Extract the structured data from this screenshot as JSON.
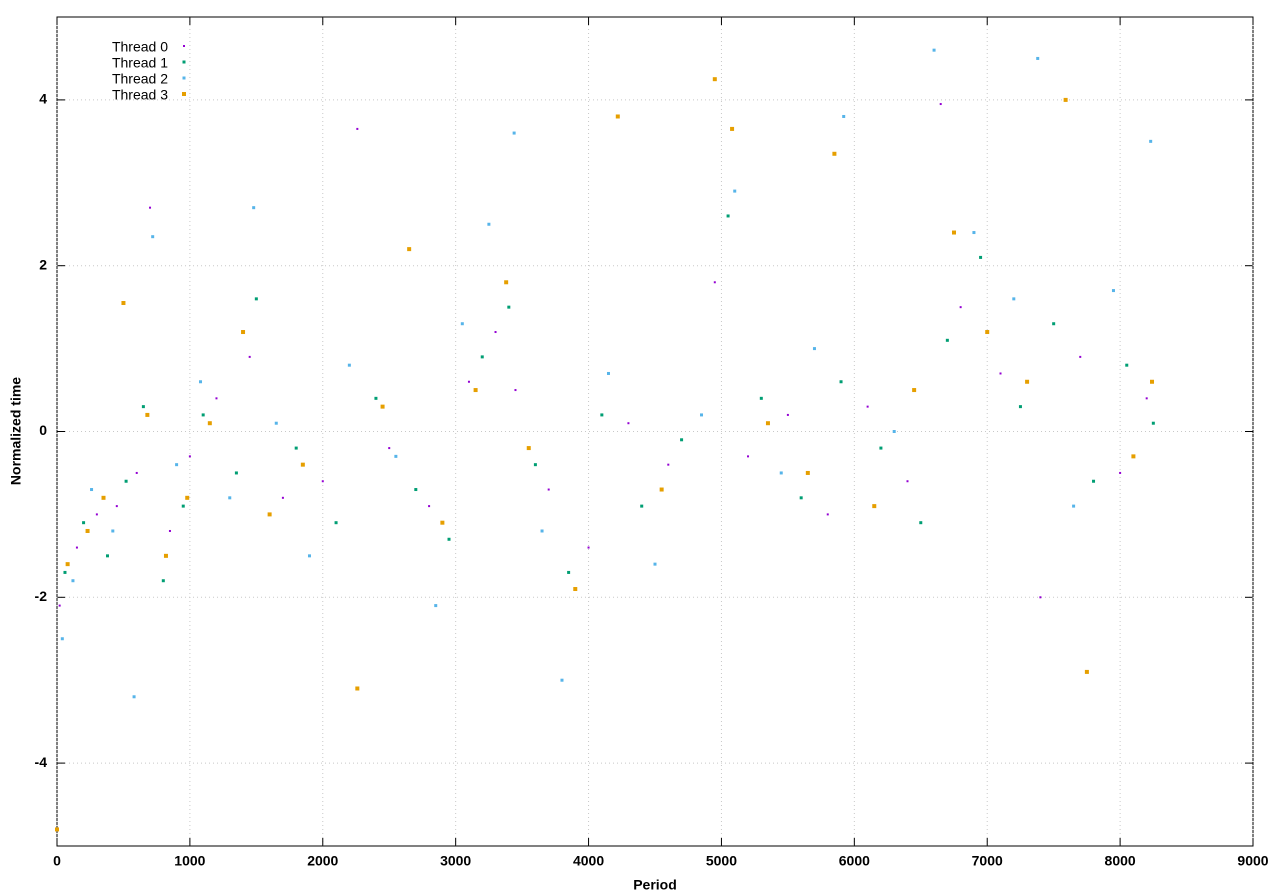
{
  "chart_data": {
    "type": "scatter",
    "xlabel": "Period",
    "ylabel": "Normalized time",
    "xlim": [
      0,
      9000
    ],
    "ylim": [
      -5,
      5
    ],
    "xticks": [
      0,
      1000,
      2000,
      3000,
      4000,
      5000,
      6000,
      7000,
      8000,
      9000
    ],
    "yticks": [
      -4,
      -2,
      0,
      2,
      4
    ],
    "grid": true,
    "legend": "top-left",
    "series": [
      {
        "name": "Thread 0",
        "color": "#9400d3",
        "x": [
          20,
          150,
          300,
          450,
          600,
          700,
          850,
          1000,
          1200,
          1450,
          1700,
          2000,
          2260,
          2500,
          2800,
          3100,
          3300,
          3450,
          3700,
          4000,
          4300,
          4600,
          4950,
          5200,
          5500,
          5800,
          6100,
          6400,
          6650,
          6800,
          7100,
          7400,
          7700,
          8000,
          8200
        ],
        "values": [
          -2.1,
          -1.4,
          -1.0,
          -0.9,
          -0.5,
          2.7,
          -1.2,
          -0.3,
          0.4,
          0.9,
          -0.8,
          -0.6,
          3.65,
          -0.2,
          -0.9,
          0.6,
          1.2,
          0.5,
          -0.7,
          -1.4,
          0.1,
          -0.4,
          1.8,
          -0.3,
          0.2,
          -1.0,
          0.3,
          -0.6,
          3.95,
          1.5,
          0.7,
          -2.0,
          0.9,
          -0.5,
          0.4
        ]
      },
      {
        "name": "Thread 1",
        "color": "#009e73",
        "x": [
          60,
          200,
          380,
          520,
          650,
          800,
          950,
          1100,
          1350,
          1500,
          1800,
          2100,
          2400,
          2700,
          2950,
          3200,
          3400,
          3600,
          3850,
          4100,
          4400,
          4700,
          5050,
          5300,
          5600,
          5900,
          6200,
          6500,
          6700,
          6950,
          7250,
          7500,
          7800,
          8050,
          8250
        ],
        "values": [
          -1.7,
          -1.1,
          -1.5,
          -0.6,
          0.3,
          -1.8,
          -0.9,
          0.2,
          -0.5,
          1.6,
          -0.2,
          -1.1,
          0.4,
          -0.7,
          -1.3,
          0.9,
          1.5,
          -0.4,
          -1.7,
          0.2,
          -0.9,
          -0.1,
          2.6,
          0.4,
          -0.8,
          0.6,
          -0.2,
          -1.1,
          1.1,
          2.1,
          0.3,
          1.3,
          -0.6,
          0.8,
          0.1
        ]
      },
      {
        "name": "Thread 2",
        "color": "#56b4e9",
        "x": [
          40,
          120,
          260,
          420,
          580,
          720,
          900,
          1080,
          1300,
          1480,
          1650,
          1900,
          2200,
          2550,
          2850,
          3050,
          3250,
          3440,
          3650,
          3800,
          4150,
          4500,
          4850,
          5100,
          5450,
          5700,
          5920,
          6300,
          6600,
          6900,
          7200,
          7380,
          7650,
          7950,
          8230
        ],
        "values": [
          -2.5,
          -1.8,
          -0.7,
          -1.2,
          -3.2,
          2.35,
          -0.4,
          0.6,
          -0.8,
          2.7,
          0.1,
          -1.5,
          0.8,
          -0.3,
          -2.1,
          1.3,
          2.5,
          3.6,
          -1.2,
          -3.0,
          0.7,
          -1.6,
          0.2,
          2.9,
          -0.5,
          1.0,
          3.8,
          0.0,
          4.6,
          2.4,
          1.6,
          4.5,
          -0.9,
          1.7,
          3.5
        ]
      },
      {
        "name": "Thread 3",
        "color": "#e69f00",
        "x": [
          0,
          80,
          230,
          350,
          500,
          680,
          820,
          980,
          1150,
          1400,
          1600,
          1850,
          2260,
          2450,
          2650,
          2900,
          3150,
          3380,
          3550,
          3900,
          4220,
          4550,
          4950,
          5080,
          5350,
          5650,
          5850,
          6150,
          6450,
          6750,
          7000,
          7300,
          7590,
          7750,
          8100,
          8240
        ],
        "values": [
          -4.8,
          -1.6,
          -1.2,
          -0.8,
          1.55,
          0.2,
          -1.5,
          -0.8,
          0.1,
          1.2,
          -1.0,
          -0.4,
          -3.1,
          0.3,
          2.2,
          -1.1,
          0.5,
          1.8,
          -0.2,
          -1.9,
          3.8,
          -0.7,
          4.25,
          3.65,
          0.1,
          -0.5,
          3.35,
          -0.9,
          0.5,
          2.4,
          1.2,
          0.6,
          4.0,
          -2.9,
          -0.3,
          0.6
        ]
      }
    ]
  }
}
